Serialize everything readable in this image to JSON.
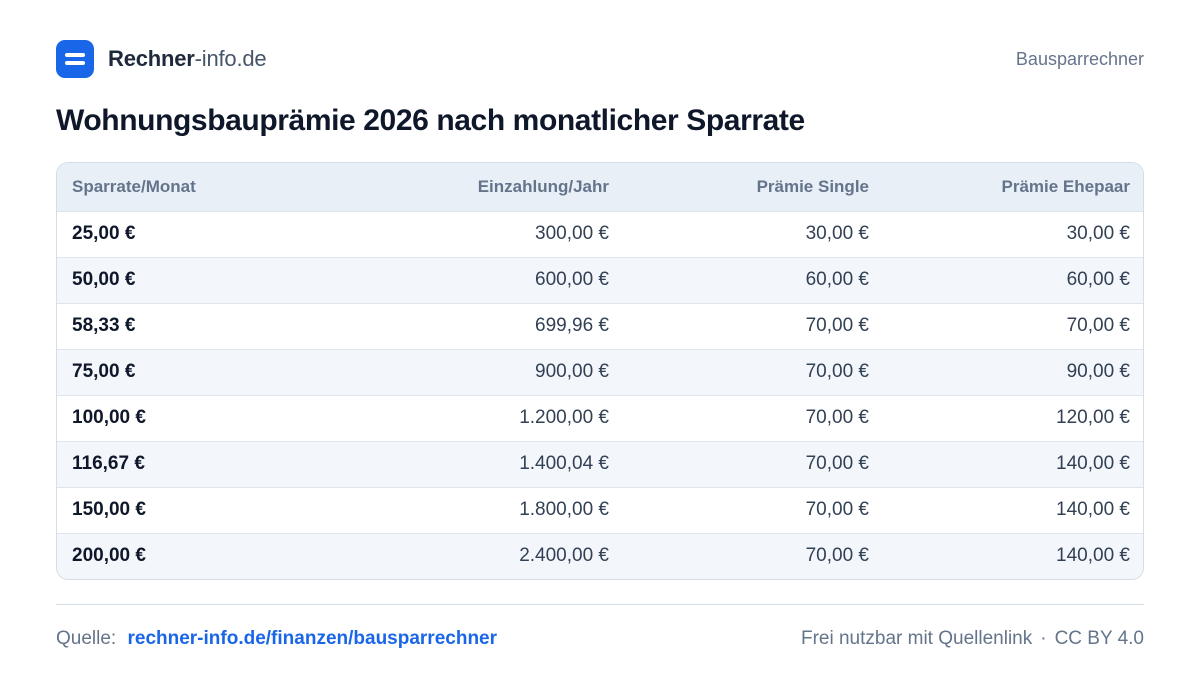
{
  "header": {
    "brand_bold": "Rechner",
    "brand_light": "-info.de",
    "nav_link": "Bausparrechner"
  },
  "title": "Wohnungsbauprämie 2026 nach monatlicher Sparrate",
  "table": {
    "headers": [
      "Sparrate/Monat",
      "Einzahlung/Jahr",
      "Prämie Single",
      "Prämie Ehepaar"
    ],
    "rows": [
      [
        "25,00 €",
        "300,00 €",
        "30,00 €",
        "30,00 €"
      ],
      [
        "50,00 €",
        "600,00 €",
        "60,00 €",
        "60,00 €"
      ],
      [
        "58,33 €",
        "699,96 €",
        "70,00 €",
        "70,00 €"
      ],
      [
        "75,00 €",
        "900,00 €",
        "70,00 €",
        "90,00 €"
      ],
      [
        "100,00 €",
        "1.200,00 €",
        "70,00 €",
        "120,00 €"
      ],
      [
        "116,67 €",
        "1.400,04 €",
        "70,00 €",
        "140,00 €"
      ],
      [
        "150,00 €",
        "1.800,00 €",
        "70,00 €",
        "140,00 €"
      ],
      [
        "200,00 €",
        "2.400,00 €",
        "70,00 €",
        "140,00 €"
      ]
    ]
  },
  "footer": {
    "source_label": "Quelle:",
    "source_link": "rechner-info.de/finanzen/bausparrechner",
    "license_text": "Frei nutzbar mit Quellenlink",
    "separator": "·",
    "license_name": "CC BY 4.0"
  },
  "colors": {
    "accent": "#1a66e8",
    "header_bg": "#e9eff7",
    "row_alt_bg": "#f3f6fb"
  }
}
